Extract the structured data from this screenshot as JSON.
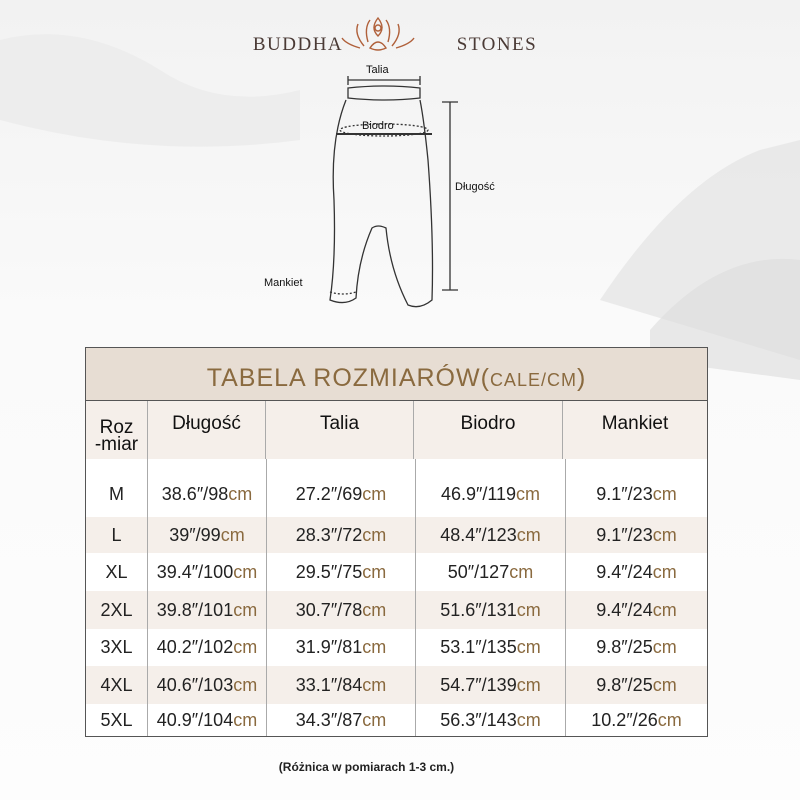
{
  "logo": {
    "left": "BUDDHA",
    "right": "STONES"
  },
  "diagram": {
    "waist": "Talia",
    "hip": "Biodro",
    "length": "Długość",
    "cuff": "Mankiet"
  },
  "table": {
    "title": "TABELA ROZMIARÓW(",
    "title_small": "CALE/CM",
    "title_end": ")",
    "headers": {
      "size_line1": "Roz",
      "size_line2": "-miar",
      "cols": [
        "Długość",
        "Talia",
        "Biodro",
        "Mankiet"
      ]
    },
    "unit": "cm",
    "rows": [
      {
        "size": "M",
        "vals": [
          "38.6″/98",
          "27.2″/69",
          "46.9″/119",
          "9.1″/23"
        ]
      },
      {
        "size": "L",
        "vals": [
          "39″/99",
          "28.3″/72",
          "48.4″/123",
          "9.1″/23"
        ]
      },
      {
        "size": "XL",
        "vals": [
          "39.4″/100",
          "29.5″/75",
          "50″/127",
          "9.4″/24"
        ]
      },
      {
        "size": "2XL",
        "vals": [
          "39.8″/101",
          "30.7″/78",
          "51.6″/131",
          "9.4″/24"
        ]
      },
      {
        "size": "3XL",
        "vals": [
          "40.2″/102",
          "31.9″/81",
          "53.1″/135",
          "9.8″/25"
        ]
      },
      {
        "size": "4XL",
        "vals": [
          "40.6″/103",
          "33.1″/84",
          "54.7″/139",
          "9.8″/25"
        ]
      },
      {
        "size": "5XL",
        "vals": [
          "40.9″/104",
          "34.3″/87",
          "56.3″/143",
          "10.2″/26"
        ]
      }
    ]
  },
  "note": "(Różnica w pomiarach 1-3 cm.)",
  "colors": {
    "accent": "#8a6a3f",
    "header_bg": "#e7ddd3",
    "alt_row": "#f5efea"
  }
}
